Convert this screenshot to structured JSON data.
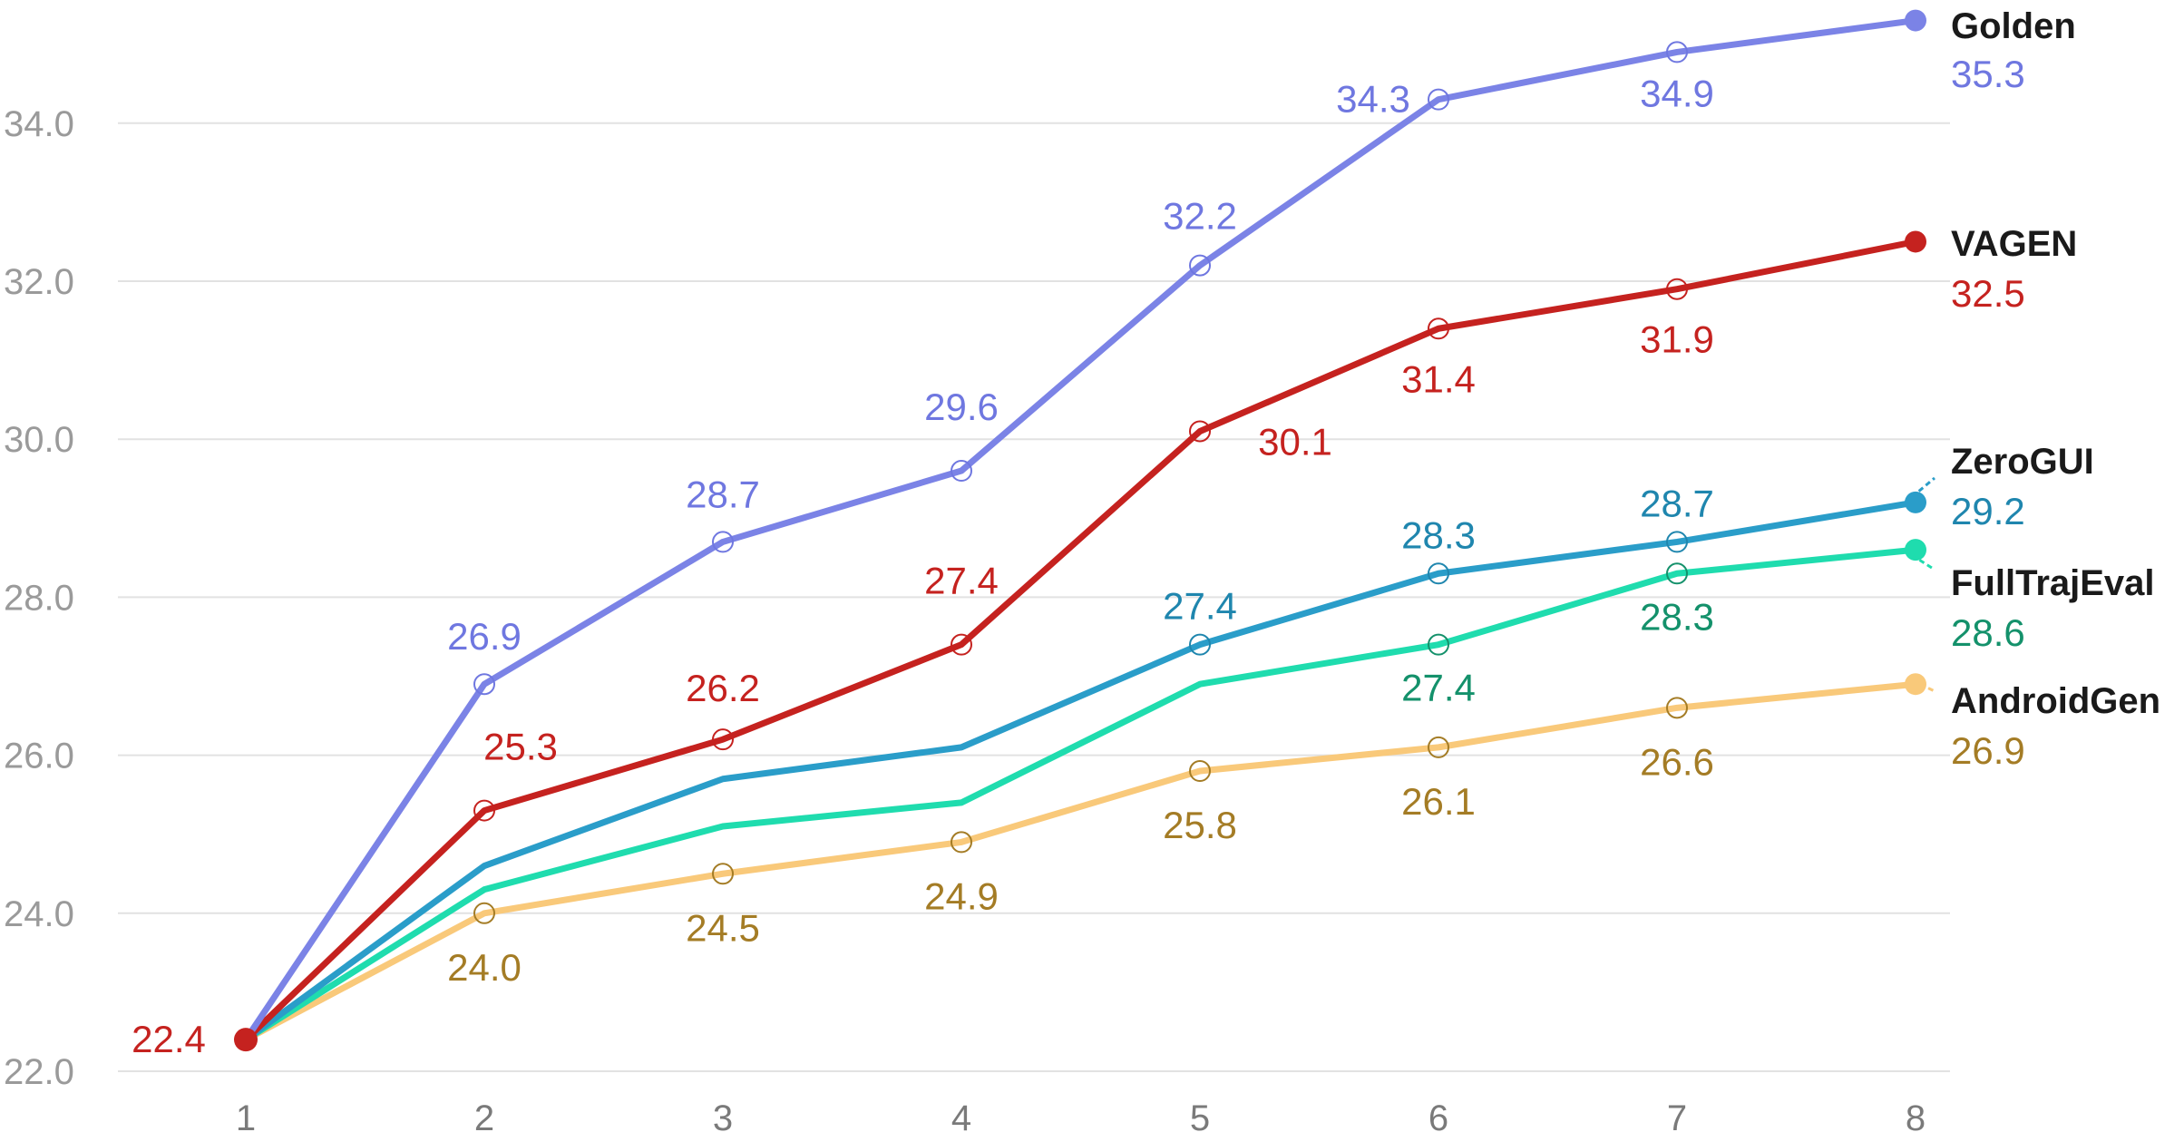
{
  "chart_data": {
    "type": "line",
    "title": "",
    "xlabel": "",
    "ylabel": "",
    "x": [
      "1",
      "2",
      "3",
      "4",
      "5",
      "6",
      "7",
      "8"
    ],
    "ylim": [
      22.0,
      35.3
    ],
    "yticks": [
      "22.0",
      "24.0",
      "26.0",
      "28.0",
      "30.0",
      "32.0",
      "34.0"
    ],
    "grid": true,
    "legend": "inline labels at right end of each line",
    "series": [
      {
        "name": "AndroidGen",
        "color": "#f9c97a",
        "label_color": "#a47c25",
        "values": [
          22.4,
          24.0,
          24.5,
          24.9,
          25.8,
          26.1,
          26.6,
          26.9
        ],
        "labels": [
          "",
          "24.0",
          "24.5",
          "24.9",
          "25.8",
          "26.1",
          "26.6",
          "26.9"
        ]
      },
      {
        "name": "FullTrajEval",
        "color": "#1fdcae",
        "label_color": "#14916b",
        "values": [
          22.4,
          24.3,
          25.1,
          25.4,
          26.9,
          27.4,
          28.3,
          28.6
        ],
        "labels": [
          "",
          "",
          "",
          "",
          "",
          "27.4",
          "28.3",
          "28.6"
        ]
      },
      {
        "name": "ZeroGUI",
        "color": "#2a9dc9",
        "label_color": "#1f86ae",
        "values": [
          22.4,
          24.6,
          25.7,
          26.1,
          27.4,
          28.3,
          28.7,
          29.2
        ],
        "labels": [
          "",
          "",
          "",
          "",
          "27.4",
          "28.3",
          "28.7",
          "29.2"
        ]
      },
      {
        "name": "VAGEN",
        "color": "#c5221f",
        "label_color": "#c5221f",
        "values": [
          22.4,
          25.3,
          26.2,
          27.4,
          30.1,
          31.4,
          31.9,
          32.5
        ],
        "labels": [
          "22.4",
          "25.3",
          "26.2",
          "27.4",
          "30.1",
          "31.4",
          "31.9",
          "32.5"
        ]
      },
      {
        "name": "Golden",
        "color": "#7b83e6",
        "label_color": "#6f77e0",
        "values": [
          22.4,
          26.9,
          28.7,
          29.6,
          32.2,
          34.3,
          34.9,
          35.3
        ],
        "labels": [
          "",
          "26.9",
          "28.7",
          "29.6",
          "32.2",
          "34.3",
          "34.9",
          "35.3"
        ]
      }
    ]
  }
}
